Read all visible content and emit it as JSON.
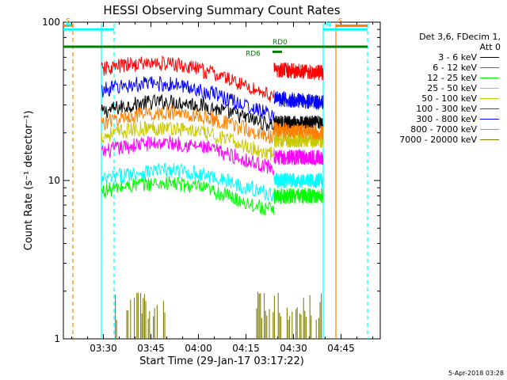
{
  "chart_data": {
    "type": "line",
    "title": "HESSI Observing Summary Count Rates",
    "xlabel": "Start Time (29-Jan-17 03:17:22)",
    "ylabel": "Count Rate (s⁻¹ detector⁻¹)",
    "yscale": "log",
    "ylim": [
      1,
      100
    ],
    "x_ticks": [
      "03:30",
      "03:45",
      "04:00",
      "04:15",
      "04:30",
      "04:45"
    ],
    "y_ticks": [
      "1",
      "10",
      "100"
    ],
    "xlim_minutes": [
      0,
      100
    ],
    "legend": {
      "header1": "Det 3,6, FDecim 1,",
      "header2": "Att 0",
      "placement": "right"
    },
    "series": [
      {
        "name": "3 - 6 keV",
        "color": "#000000",
        "segments": [
          {
            "x": [
              12,
              66.5
            ],
            "y": [
              27,
              26
            ]
          },
          {
            "x": [
              66.5,
              82
            ],
            "y": [
              23,
              23
            ]
          }
        ]
      },
      {
        "name": "6 - 12 keV",
        "color": "#ff00ff",
        "segments": [
          {
            "x": [
              12,
              66.5
            ],
            "y": [
              15,
              14
            ]
          },
          {
            "x": [
              66.5,
              82
            ],
            "y": [
              14,
              14
            ]
          }
        ]
      },
      {
        "name": "12 - 25 keV",
        "color": "#00ff00",
        "segments": [
          {
            "x": [
              12,
              66.5
            ],
            "y": [
              8.5,
              7.5
            ]
          },
          {
            "x": [
              66.5,
              82
            ],
            "y": [
              8,
              8
            ]
          }
        ]
      },
      {
        "name": "25 - 50 keV",
        "color": "#00ffff",
        "segments": [
          {
            "x": [
              12,
              66.5
            ],
            "y": [
              10,
              9.5
            ]
          },
          {
            "x": [
              66.5,
              82
            ],
            "y": [
              10,
              10
            ]
          }
        ]
      },
      {
        "name": "50 - 100 keV",
        "color": "#c8c800",
        "segments": [
          {
            "x": [
              12,
              66.5
            ],
            "y": [
              19,
              17
            ]
          },
          {
            "x": [
              66.5,
              82
            ],
            "y": [
              18,
              18
            ]
          }
        ]
      },
      {
        "name": "100 - 300 keV",
        "color": "#ff0000",
        "segments": [
          {
            "x": [
              12,
              66.5
            ],
            "y": [
              50,
              40
            ]
          },
          {
            "x": [
              66.5,
              82
            ],
            "y": [
              50,
              48
            ]
          }
        ]
      },
      {
        "name": "300 - 800 keV",
        "color": "#0000ff",
        "segments": [
          {
            "x": [
              12,
              66.5
            ],
            "y": [
              37,
              30
            ]
          },
          {
            "x": [
              66.5,
              82
            ],
            "y": [
              33,
              31
            ]
          }
        ]
      },
      {
        "name": "800 - 7000 keV",
        "color": "#ff8000",
        "segments": [
          {
            "x": [
              12,
              66.5
            ],
            "y": [
              23,
              22
            ]
          },
          {
            "x": [
              66.5,
              82
            ],
            "y": [
              21,
              20
            ]
          }
        ]
      },
      {
        "name": "7000 - 20000 keV",
        "color": "#808000",
        "segments": [
          {
            "x": [
              16,
              82
            ],
            "y": [
              1,
              1
            ]
          }
        ]
      }
    ],
    "bands": [
      {
        "label": "S",
        "color": "#ff8000",
        "x": [
          0,
          3
        ],
        "y": 95
      },
      {
        "label": "N",
        "color": "#00ffff",
        "x": [
          0,
          16
        ],
        "y": 90
      },
      {
        "label": "N",
        "color": "#00ffff",
        "x": [
          82,
          96
        ],
        "y": 90
      },
      {
        "label": "S",
        "color": "#ff8000",
        "x": [
          86,
          96
        ],
        "y": 95
      },
      {
        "label": "RD6",
        "color": "#008000",
        "x": [
          66,
          69
        ],
        "y": 65
      },
      {
        "label": "RD0",
        "color": "#008000",
        "x": [
          0,
          96
        ],
        "y": 70
      }
    ],
    "vlines": [
      {
        "color": "#ff8000",
        "style": "dashed",
        "x": 3
      },
      {
        "color": "#00ffff",
        "style": "solid",
        "x": 12
      },
      {
        "color": "#00ffff",
        "style": "dashed",
        "x": 16
      },
      {
        "color": "#00ffff",
        "style": "solid",
        "x": 82
      },
      {
        "color": "#ff8000",
        "style": "solid",
        "x": 86
      },
      {
        "color": "#00ffff",
        "style": "dashed",
        "x": 96
      }
    ]
  },
  "footer_text": "5-Apr-2018 03:28"
}
